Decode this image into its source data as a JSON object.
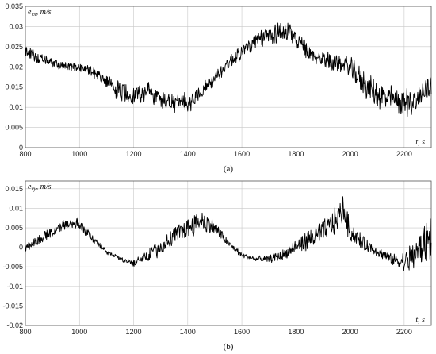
{
  "chart_data": [
    {
      "type": "line",
      "caption": "(a)",
      "ylabel": "e",
      "ylabel_sub": "vx",
      "ylabel_unit": ", m/s",
      "xlabel": "t, s",
      "xlim": [
        800,
        2300
      ],
      "ylim": [
        0,
        0.035
      ],
      "xticks": [
        "800",
        "1000",
        "1200",
        "1400",
        "1600",
        "1800",
        "2000",
        "2200"
      ],
      "yticks": [
        "0",
        "0.005",
        "0.01",
        "0.015",
        "0.02",
        "0.025",
        "0.03",
        "0.035"
      ],
      "grid": true,
      "series": [
        {
          "color": "#000000",
          "x": [
            800,
            850,
            900,
            950,
            1000,
            1050,
            1100,
            1150,
            1200,
            1250,
            1300,
            1350,
            1400,
            1450,
            1500,
            1550,
            1600,
            1650,
            1700,
            1750,
            1800,
            1850,
            1900,
            1950,
            2000,
            2050,
            2100,
            2150,
            2200,
            2250,
            2300
          ],
          "y": [
            0.024,
            0.022,
            0.021,
            0.02,
            0.02,
            0.019,
            0.016,
            0.014,
            0.013,
            0.014,
            0.012,
            0.011,
            0.011,
            0.014,
            0.017,
            0.021,
            0.024,
            0.026,
            0.028,
            0.029,
            0.027,
            0.023,
            0.022,
            0.021,
            0.02,
            0.016,
            0.013,
            0.012,
            0.011,
            0.012,
            0.016
          ],
          "noise": [
            0.0015,
            0.0012,
            0.001,
            0.001,
            0.001,
            0.0012,
            0.0018,
            0.0022,
            0.0022,
            0.0022,
            0.0022,
            0.0022,
            0.0022,
            0.0018,
            0.0015,
            0.0015,
            0.0018,
            0.002,
            0.0022,
            0.0025,
            0.0022,
            0.0018,
            0.0018,
            0.0018,
            0.0022,
            0.0028,
            0.003,
            0.003,
            0.003,
            0.003,
            0.003
          ]
        }
      ]
    },
    {
      "type": "line",
      "caption": "(b)",
      "ylabel": "e",
      "ylabel_sub": "vy",
      "ylabel_unit": ", m/s",
      "xlabel": "t, s",
      "xlim": [
        800,
        2300
      ],
      "ylim": [
        -0.02,
        0.017
      ],
      "xticks": [
        "800",
        "1000",
        "1200",
        "1400",
        "1600",
        "1800",
        "2000",
        "2200"
      ],
      "yticks": [
        "-0.02",
        "-0.015",
        "-0.01",
        "-0.005",
        "0",
        "0.005",
        "0.01",
        "0.015"
      ],
      "grid": true,
      "series": [
        {
          "color": "#000000",
          "x": [
            800,
            850,
            900,
            950,
            1000,
            1050,
            1100,
            1150,
            1200,
            1250,
            1300,
            1350,
            1400,
            1450,
            1500,
            1550,
            1600,
            1650,
            1700,
            1750,
            1800,
            1850,
            1900,
            1950,
            1975,
            2000,
            2050,
            2100,
            2150,
            2200,
            2250,
            2300
          ],
          "y": [
            0.0,
            0.002,
            0.004,
            0.006,
            0.006,
            0.002,
            -0.001,
            -0.003,
            -0.004,
            -0.002,
            0.0,
            0.003,
            0.005,
            0.007,
            0.005,
            0.001,
            -0.002,
            -0.003,
            -0.003,
            -0.002,
            0.0,
            0.002,
            0.004,
            0.007,
            0.01,
            0.004,
            0.001,
            -0.001,
            -0.003,
            -0.004,
            -0.001,
            0.003
          ],
          "noise": [
            0.0012,
            0.0012,
            0.0012,
            0.0012,
            0.0012,
            0.0008,
            0.0006,
            0.0006,
            0.001,
            0.0015,
            0.0018,
            0.002,
            0.0022,
            0.0025,
            0.0018,
            0.0008,
            0.0006,
            0.0006,
            0.0008,
            0.0012,
            0.0018,
            0.0022,
            0.0025,
            0.003,
            0.003,
            0.0025,
            0.0015,
            0.0012,
            0.0012,
            0.0025,
            0.004,
            0.005
          ]
        }
      ]
    }
  ]
}
